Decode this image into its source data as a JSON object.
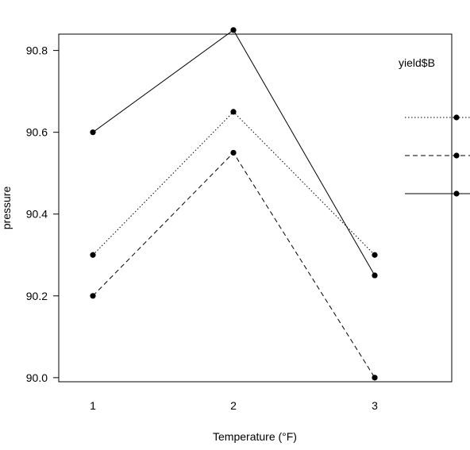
{
  "chart_data": {
    "type": "line",
    "xlabel": "Temperature (°F)",
    "ylabel": "pressure",
    "categories": [
      "1",
      "2",
      "3"
    ],
    "x": [
      1,
      2,
      3
    ],
    "ylim": [
      89.99,
      90.84
    ],
    "yticks": [
      "90.0",
      "90.2",
      "90.4",
      "90.6",
      "90.8"
    ],
    "ytick_values": [
      90.0,
      90.2,
      90.4,
      90.6,
      90.8
    ],
    "legend": {
      "title": "yield$B",
      "placement": "right"
    },
    "grid": false,
    "series": [
      {
        "key": "solid",
        "linestyle": "solid",
        "values": [
          90.6,
          90.85,
          90.25
        ]
      },
      {
        "key": "dotted",
        "linestyle": "dotted",
        "values": [
          90.3,
          90.65,
          90.3
        ]
      },
      {
        "key": "dashed",
        "linestyle": "dashed",
        "values": [
          90.2,
          90.55,
          90.0
        ]
      }
    ],
    "legend_order": [
      "dotted",
      "dashed",
      "solid"
    ],
    "line_color": "#000000",
    "marker": "filled-circle"
  }
}
